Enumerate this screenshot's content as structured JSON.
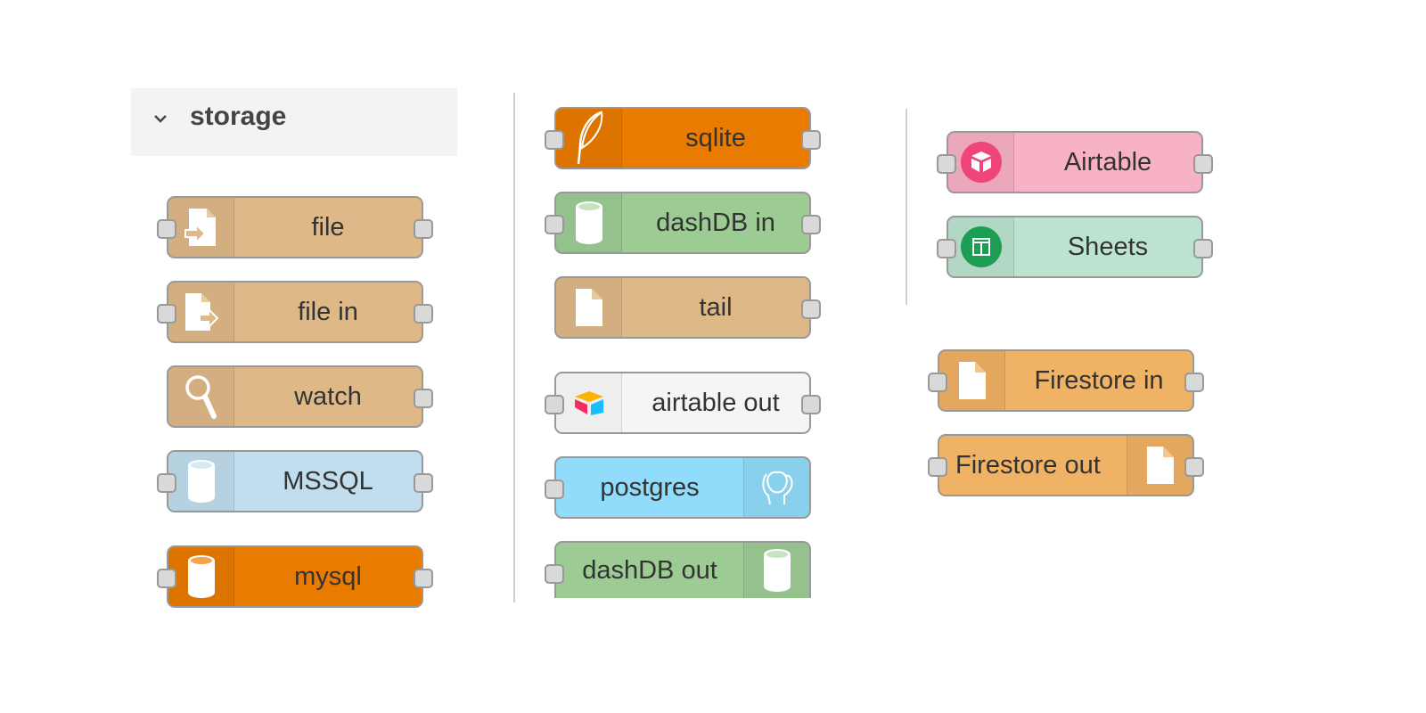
{
  "category": {
    "title": "storage",
    "expanded": true,
    "chevron_icon": "chevron-down-icon"
  },
  "nodes": [
    {
      "id": "file",
      "label": "file",
      "color": "#deb887",
      "icon": "file-in-arrow-icon",
      "inputs": 1,
      "outputs": 1
    },
    {
      "id": "file-in",
      "label": "file in",
      "color": "#deb887",
      "icon": "file-out-arrow-icon",
      "inputs": 1,
      "outputs": 1
    },
    {
      "id": "watch",
      "label": "watch",
      "color": "#deb887",
      "icon": "search-icon",
      "inputs": 0,
      "outputs": 1
    },
    {
      "id": "mssql",
      "label": "MSSQL",
      "color": "#c0deed",
      "icon": "database-icon",
      "inputs": 1,
      "outputs": 1
    },
    {
      "id": "mysql",
      "label": "mysql",
      "color": "#e97b00",
      "icon": "database-icon",
      "inputs": 1,
      "outputs": 1
    },
    {
      "id": "sqlite",
      "label": "sqlite",
      "color": "#e97b00",
      "icon": "feather-icon",
      "inputs": 1,
      "outputs": 1
    },
    {
      "id": "dashdb-in",
      "label": "dashDB in",
      "color": "#9ccc94",
      "icon": "database-icon",
      "inputs": 1,
      "outputs": 1
    },
    {
      "id": "tail",
      "label": "tail",
      "color": "#deb887",
      "icon": "file-icon",
      "inputs": 0,
      "outputs": 1
    },
    {
      "id": "airtable-out",
      "label": "airtable out",
      "color": "#f5f5f5",
      "icon": "airtable-logo-icon",
      "inputs": 1,
      "outputs": 1
    },
    {
      "id": "postgres",
      "label": "postgres",
      "color": "#91dcfa",
      "icon": "elephant-icon",
      "inputs": 1,
      "outputs": 0
    },
    {
      "id": "dashdb-out",
      "label": "dashDB out",
      "color": "#9ccc94",
      "icon": "database-icon",
      "inputs": 1,
      "outputs": 0
    },
    {
      "id": "airtable",
      "label": "Airtable",
      "color": "#f8b2c5",
      "icon": "airtable-badge-icon",
      "inputs": 1,
      "outputs": 1
    },
    {
      "id": "sheets",
      "label": "Sheets",
      "color": "#bce3cf",
      "icon": "sheets-icon",
      "inputs": 1,
      "outputs": 1
    },
    {
      "id": "firestore-in",
      "label": "Firestore in",
      "color": "#f0b264",
      "icon": "file-icon",
      "inputs": 1,
      "outputs": 1
    },
    {
      "id": "firestore-out",
      "label": "Firestore out",
      "color": "#f0b264",
      "icon": "file-icon",
      "inputs": 1,
      "outputs": 1
    }
  ]
}
